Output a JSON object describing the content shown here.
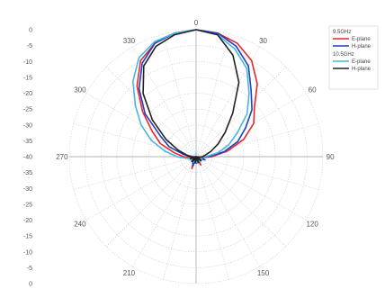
{
  "chart_data": {
    "type": "polar-line",
    "radial_axis": {
      "min": -40,
      "max": 0,
      "step": 5,
      "ticks_top": [
        "0",
        "-5",
        "-10",
        "-15",
        "-20",
        "-25",
        "-30",
        "-35",
        "-40"
      ],
      "ticks_bottom": [
        "-35",
        "-30",
        "-25",
        "-20",
        "-15",
        "-10",
        "-5",
        "0"
      ]
    },
    "angular_axis": {
      "ticks": [
        "0",
        "30",
        "60",
        "90",
        "120",
        "150",
        "210",
        "240",
        "270",
        "300",
        "330"
      ],
      "tick_angles": [
        0,
        30,
        60,
        90,
        120,
        150,
        210,
        240,
        270,
        300,
        330
      ],
      "grid_step_deg": 15
    },
    "legend_groups": [
      {
        "label": "9.5GHz",
        "entries": [
          "E-plane",
          "H-plane"
        ]
      },
      {
        "label": "10.5GHz",
        "entries": [
          "E-plane",
          "H-plane"
        ]
      }
    ],
    "legend_position": "top-right",
    "series": [
      {
        "name": "E-plane",
        "group": "9.5GHz",
        "color": "#e8262a",
        "theta": [
          0,
          10,
          20,
          30,
          40,
          50,
          60,
          70,
          80,
          90,
          100,
          110,
          120,
          130,
          140,
          150,
          160,
          170,
          180,
          190,
          200,
          210,
          220,
          230,
          240,
          250,
          260,
          270,
          280,
          290,
          300,
          310,
          320,
          330,
          340,
          350
        ],
        "r": [
          0,
          -0.5,
          -2,
          -5,
          -10,
          -16,
          -19,
          -24,
          -30,
          -35,
          -38,
          -40,
          -39,
          -38,
          -40,
          -37,
          -39,
          -40,
          -38,
          -39,
          -36,
          -39,
          -38,
          -40,
          -39,
          -38,
          -39,
          -36,
          -33,
          -28,
          -24,
          -18,
          -11,
          -5,
          -2,
          -0.5
        ]
      },
      {
        "name": "H-plane",
        "group": "9.5GHz",
        "color": "#1f3fbf",
        "theta": [
          0,
          10,
          20,
          30,
          40,
          50,
          60,
          70,
          80,
          90,
          100,
          110,
          120,
          130,
          140,
          150,
          160,
          170,
          180,
          190,
          200,
          210,
          220,
          230,
          240,
          250,
          260,
          270,
          280,
          290,
          300,
          310,
          320,
          330,
          340,
          350
        ],
        "r": [
          0,
          -0.5,
          -3,
          -7,
          -13,
          -17,
          -22,
          -26,
          -31,
          -36,
          -39,
          -37,
          -39,
          -38,
          -40,
          -39,
          -40,
          -38,
          -38,
          -39,
          -37,
          -38,
          -40,
          -38,
          -39,
          -38,
          -40,
          -39,
          -36,
          -31,
          -27,
          -19,
          -12,
          -6,
          -2,
          -0.5
        ]
      },
      {
        "name": "E-plane",
        "group": "10.5GHz",
        "color": "#46b8e0",
        "theta": [
          0,
          10,
          20,
          30,
          40,
          50,
          60,
          70,
          80,
          90,
          100,
          110,
          120,
          130,
          140,
          150,
          160,
          170,
          180,
          190,
          200,
          210,
          220,
          230,
          240,
          250,
          260,
          270,
          280,
          290,
          300,
          310,
          320,
          330,
          340,
          350
        ],
        "r": [
          0,
          -1,
          -4,
          -8,
          -14,
          -19,
          -25,
          -29,
          -33,
          -37,
          -39,
          -38,
          -40,
          -39,
          -38,
          -40,
          -39,
          -38,
          -40,
          -39,
          -38,
          -40,
          -39,
          -38,
          -39,
          -38,
          -37,
          -34,
          -30,
          -25,
          -20,
          -15,
          -9,
          -4,
          -1.5,
          -0.5
        ]
      },
      {
        "name": "H-plane",
        "group": "10.5GHz",
        "color": "#222222",
        "theta": [
          0,
          10,
          20,
          30,
          40,
          50,
          60,
          70,
          80,
          90,
          100,
          110,
          120,
          130,
          140,
          150,
          160,
          170,
          180,
          190,
          200,
          210,
          220,
          230,
          240,
          250,
          260,
          270,
          280,
          290,
          300,
          310,
          320,
          330,
          340,
          350
        ],
        "r": [
          0,
          -1,
          -6,
          -13,
          -22,
          -28,
          -32,
          -35,
          -37,
          -38,
          -39,
          -40,
          -39,
          -38,
          -40,
          -39,
          -38,
          -40,
          -39,
          -38,
          -40,
          -39,
          -38,
          -39,
          -40,
          -38,
          -39,
          -38,
          -37,
          -34,
          -29,
          -22,
          -14,
          -7,
          -3,
          -1
        ]
      }
    ]
  }
}
